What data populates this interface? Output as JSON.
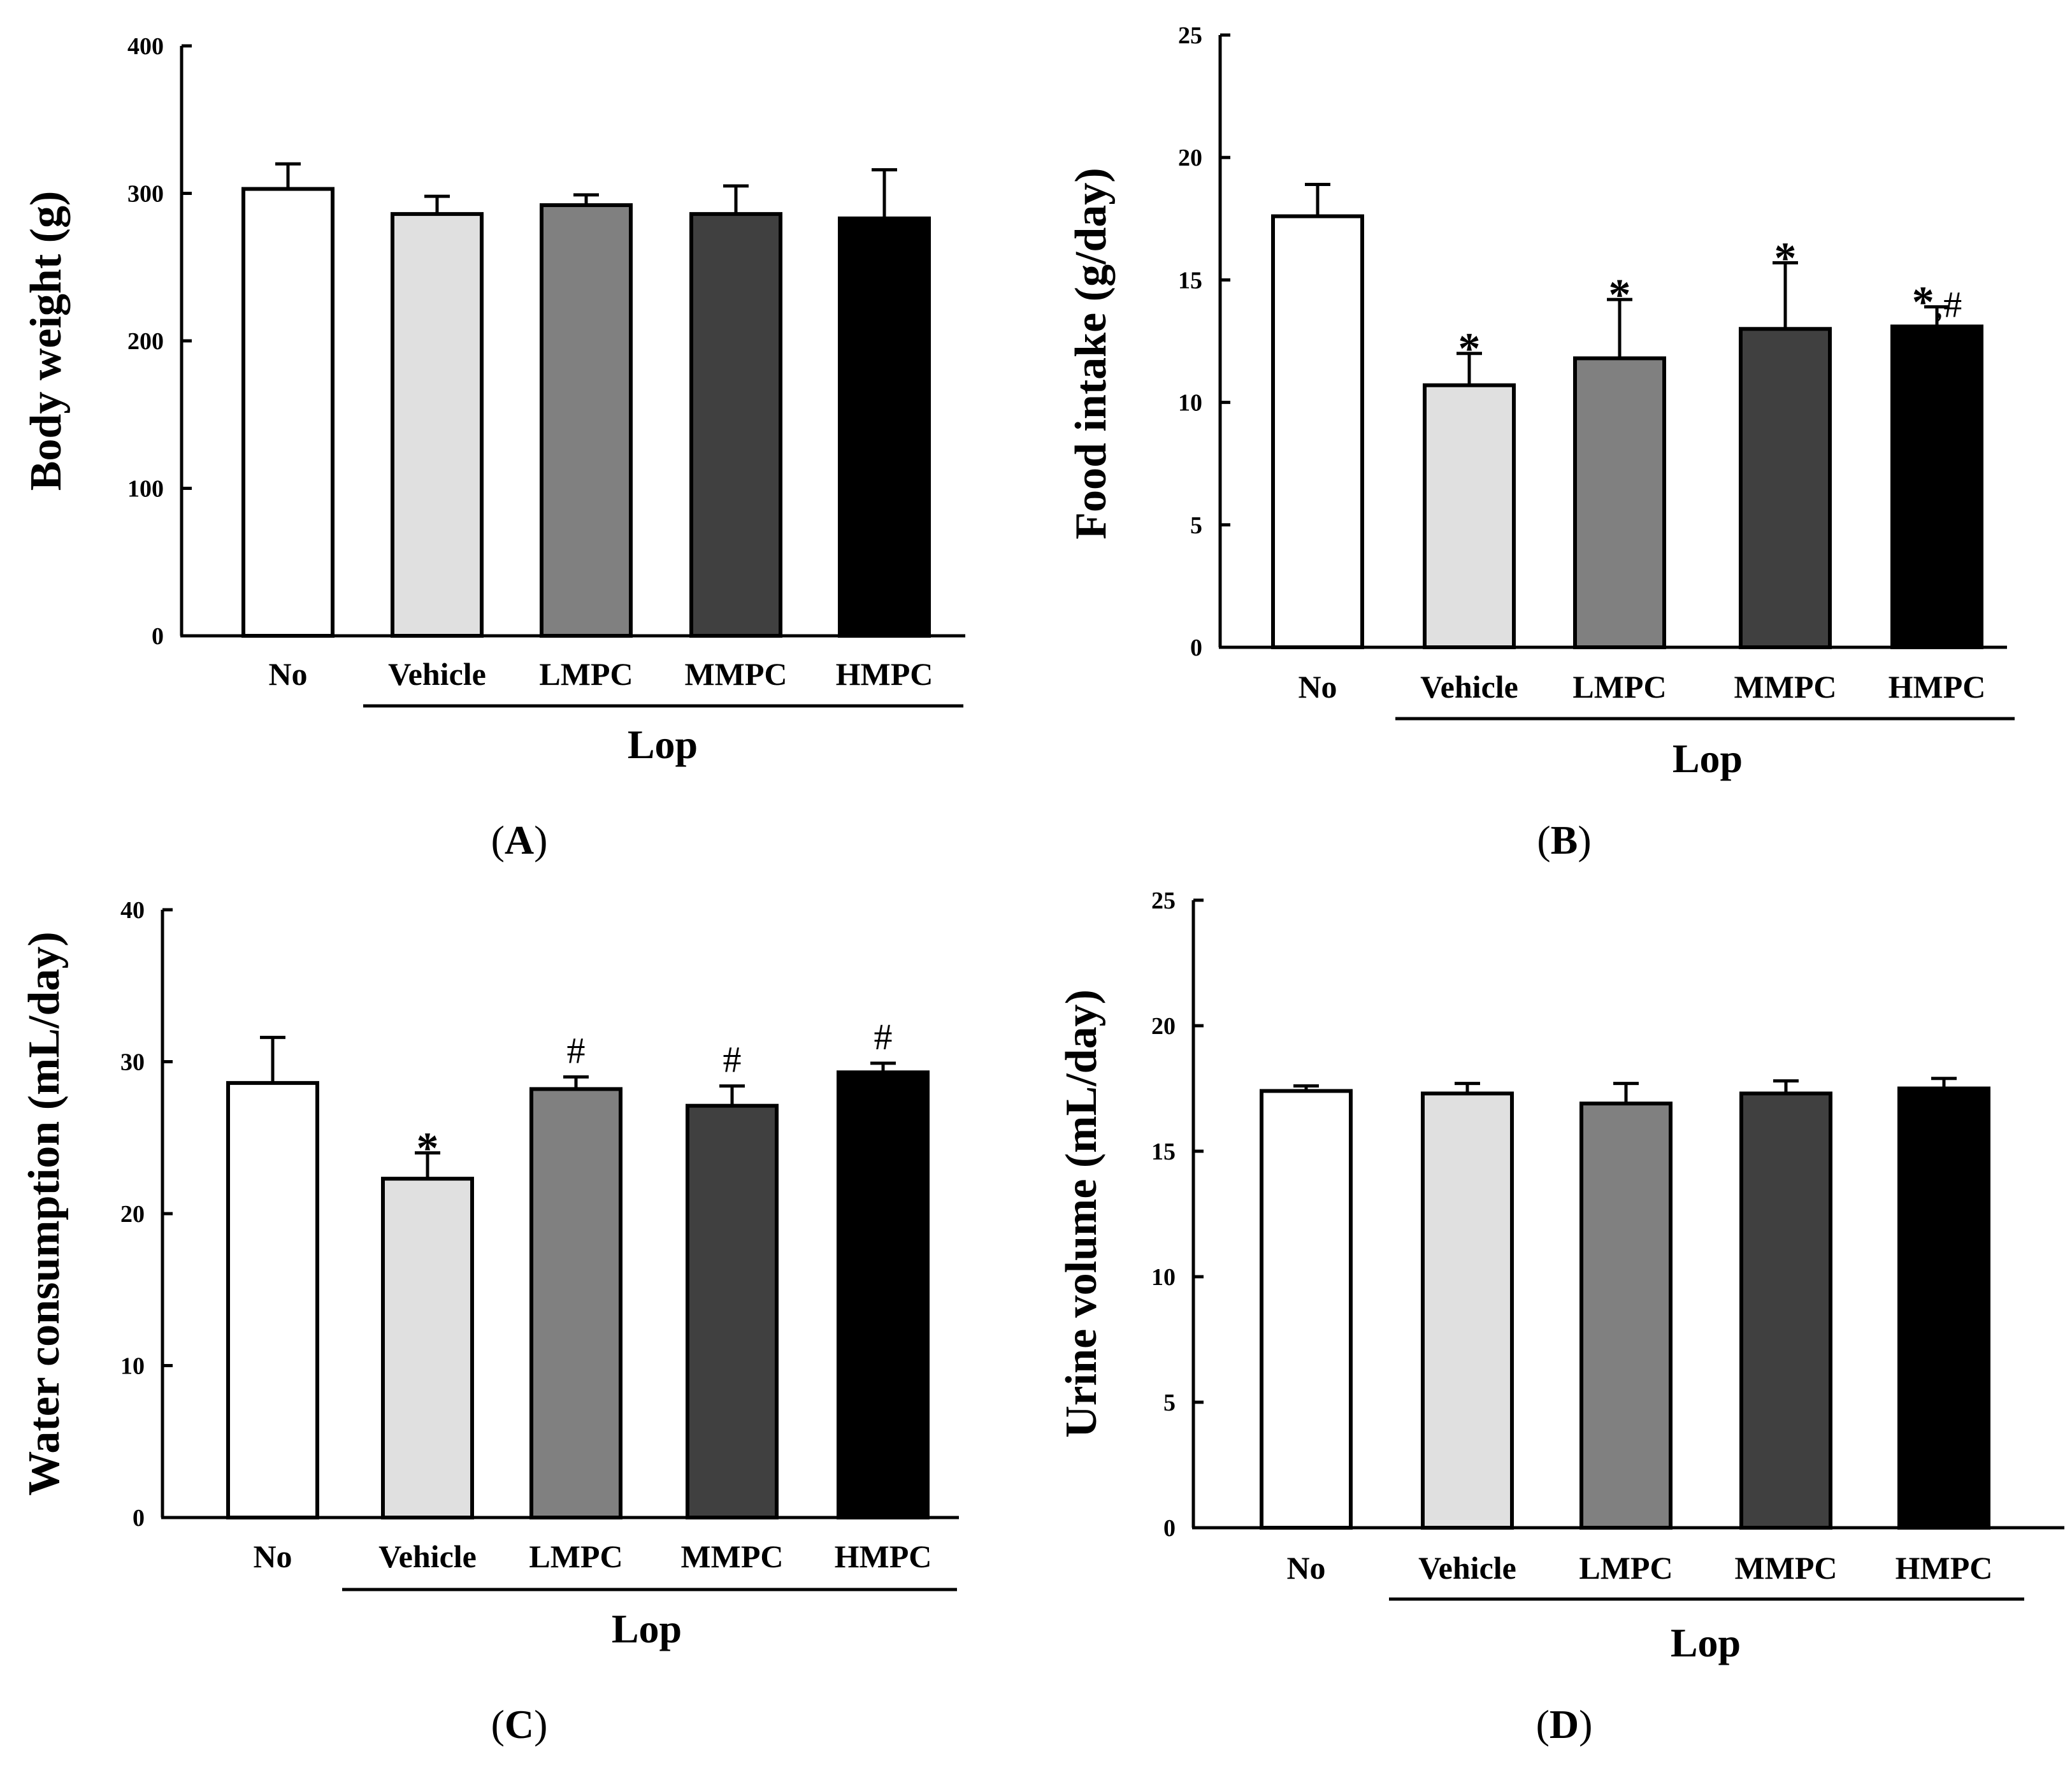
{
  "chart_data": [
    {
      "id": "A",
      "type": "bar",
      "panel_label": "A",
      "ylabel": "Body weight (g)",
      "group_label": "Lop",
      "categories": [
        "No",
        "Vehicle",
        "LMPC",
        "MMPC",
        "HMPC"
      ],
      "values": [
        303,
        286,
        292,
        286,
        283
      ],
      "errors": [
        17,
        12,
        7,
        19,
        33
      ],
      "ylim": [
        0,
        400
      ],
      "yticks": [
        "0",
        "100",
        "200",
        "300",
        "400"
      ],
      "significance": [
        "",
        "",
        "",
        "",
        ""
      ],
      "colors": [
        "#ffffff",
        "#e0e0e0",
        "#808080",
        "#404040",
        "#000000"
      ]
    },
    {
      "id": "B",
      "type": "bar",
      "panel_label": "B",
      "ylabel": "Food intake (g/day)",
      "group_label": "Lop",
      "categories": [
        "No",
        "Vehicle",
        "LMPC",
        "MMPC",
        "HMPC"
      ],
      "values": [
        17.6,
        10.7,
        11.8,
        13.0,
        13.1
      ],
      "errors": [
        1.3,
        1.3,
        2.4,
        2.7,
        0.8
      ],
      "ylim": [
        0,
        25
      ],
      "yticks": [
        "0",
        "5",
        "10",
        "15",
        "20",
        "25"
      ],
      "significance": [
        "",
        "*",
        "*",
        "*",
        "*,#"
      ],
      "colors": [
        "#ffffff",
        "#e0e0e0",
        "#808080",
        "#404040",
        "#000000"
      ]
    },
    {
      "id": "C",
      "type": "bar",
      "panel_label": "C",
      "ylabel": "Water consumption (mL/day)",
      "group_label": "Lop",
      "categories": [
        "No",
        "Vehicle",
        "LMPC",
        "MMPC",
        "HMPC"
      ],
      "values": [
        28.6,
        22.3,
        28.2,
        27.1,
        29.3
      ],
      "errors": [
        3.0,
        1.7,
        0.8,
        1.3,
        0.6
      ],
      "ylim": [
        0,
        40
      ],
      "yticks": [
        "0",
        "10",
        "20",
        "30",
        "40"
      ],
      "significance": [
        "",
        "*",
        "#",
        "#",
        "#"
      ],
      "colors": [
        "#ffffff",
        "#e0e0e0",
        "#808080",
        "#404040",
        "#000000"
      ]
    },
    {
      "id": "D",
      "type": "bar",
      "panel_label": "D",
      "ylabel": "Urine volume (mL/day)",
      "group_label": "Lop",
      "categories": [
        "No",
        "Vehicle",
        "LMPC",
        "MMPC",
        "HMPC"
      ],
      "values": [
        17.4,
        17.3,
        16.9,
        17.3,
        17.5
      ],
      "errors": [
        0.2,
        0.4,
        0.8,
        0.5,
        0.4
      ],
      "ylim": [
        0,
        25
      ],
      "yticks": [
        "0",
        "5",
        "10",
        "15",
        "20",
        "25"
      ],
      "significance": [
        "",
        "",
        "",
        "",
        ""
      ],
      "colors": [
        "#ffffff",
        "#e0e0e0",
        "#808080",
        "#404040",
        "#000000"
      ]
    }
  ]
}
